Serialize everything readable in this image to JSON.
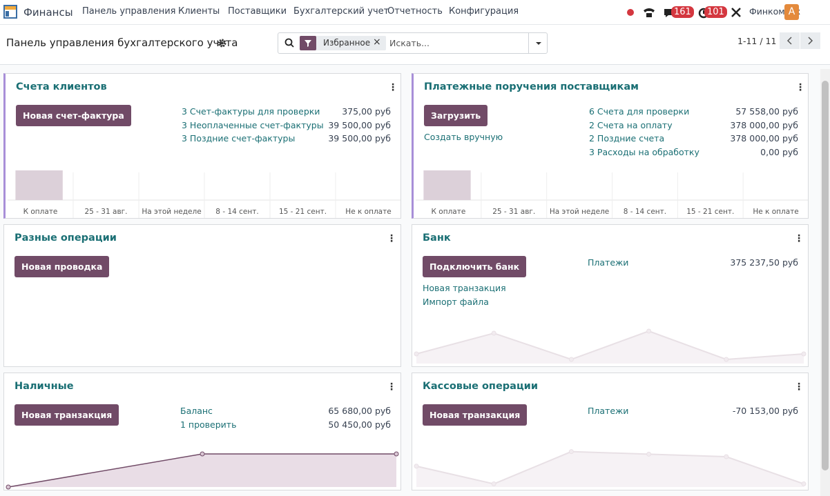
{
  "navbar": {
    "app": "Финансы",
    "menu": [
      "Панель управления",
      "Клиенты",
      "Поставщики",
      "Бухгалтерский учет",
      "Отчетность",
      "Конфигурация"
    ],
    "chat_badge": "161",
    "activity_badge": "101",
    "company": "Финкомтех",
    "avatar": "A"
  },
  "control": {
    "title": "Панель управления бухгалтерского учета",
    "facet": "Избранное",
    "search_placeholder": "Искать...",
    "pager": "1-11 / 11"
  },
  "cards": [
    {
      "title": "Счета клиентов",
      "button": "Новая счет-фактура",
      "links": [],
      "rows": [
        {
          "label": "3 Счет-фактуры для проверки",
          "amount": "375,00 руб"
        },
        {
          "label": "3 Неоплаченные счет-фактуры",
          "amount": "39 500,00 руб"
        },
        {
          "label": "3 Поздние счет-фактуры",
          "amount": "39 500,00 руб"
        }
      ],
      "graph": {
        "type": "bar",
        "categories": [
          "К оплате",
          "25 - 31 авг.",
          "На этой неделе",
          "8 - 14 сент.",
          "15 - 21 сент.",
          "Не к оплате"
        ],
        "values": [
          43,
          0,
          0,
          0,
          0,
          0
        ],
        "ylim": [
          0,
          49
        ],
        "color": "#dcd0d9"
      }
    },
    {
      "title": "Платежные поручения поставщикам",
      "button": "Загрузить",
      "links": [
        "Создать вручную"
      ],
      "rows": [
        {
          "label": "6 Счета для проверки",
          "amount": "57 558,00 руб"
        },
        {
          "label": "2 Счета на оплату",
          "amount": "378 000,00 руб"
        },
        {
          "label": "2 Поздние счета",
          "amount": "378 000,00 руб"
        },
        {
          "label": "3 Расходы на обработку",
          "amount": "0,00 руб"
        }
      ],
      "graph": {
        "type": "bar",
        "categories": [
          "К оплате",
          "25 - 31 авг.",
          "На этой неделе",
          "8 - 14 сент.",
          "15 - 21 сент.",
          "Не к оплате"
        ],
        "values": [
          43,
          0,
          0,
          0,
          0,
          0
        ],
        "ylim": [
          0,
          49
        ],
        "color": "#dcd0d9"
      }
    },
    {
      "title": "Разные операции",
      "button": "Новая проводка",
      "links": [],
      "rows": []
    },
    {
      "title": "Банк",
      "button": "Подключить банк",
      "links": [
        "Новая транзакция",
        "Импорт файла"
      ],
      "rows": [
        {
          "label": "Платежи",
          "amount": "375 237,50 руб"
        }
      ],
      "graph": {
        "type": "line",
        "values": [
          14,
          44,
          6,
          47,
          6,
          14
        ],
        "ylim": [
          0,
          55
        ],
        "color": "#e8e0e5"
      }
    },
    {
      "title": "Наличные",
      "button": "Новая транзакция",
      "links": [],
      "rows": [
        {
          "label": "Баланс",
          "amount": "65 680,00 руб"
        },
        {
          "label": "1 проверить",
          "amount": "50 450,00 руб"
        }
      ],
      "graph": {
        "type": "line",
        "values": [
          0,
          48,
          48
        ],
        "ylim": [
          0,
          54
        ],
        "color": "#714b67"
      }
    },
    {
      "title": "Кассовые операции",
      "button": "Новая транзакция",
      "links": [],
      "rows": [
        {
          "label": "Платежи",
          "amount": "-70 153,00 руб"
        }
      ],
      "graph": {
        "type": "line",
        "values": [
          33,
          5,
          56,
          52,
          48,
          5
        ],
        "ylim": [
          0,
          60
        ],
        "color": "#e8e0e5"
      }
    }
  ]
}
